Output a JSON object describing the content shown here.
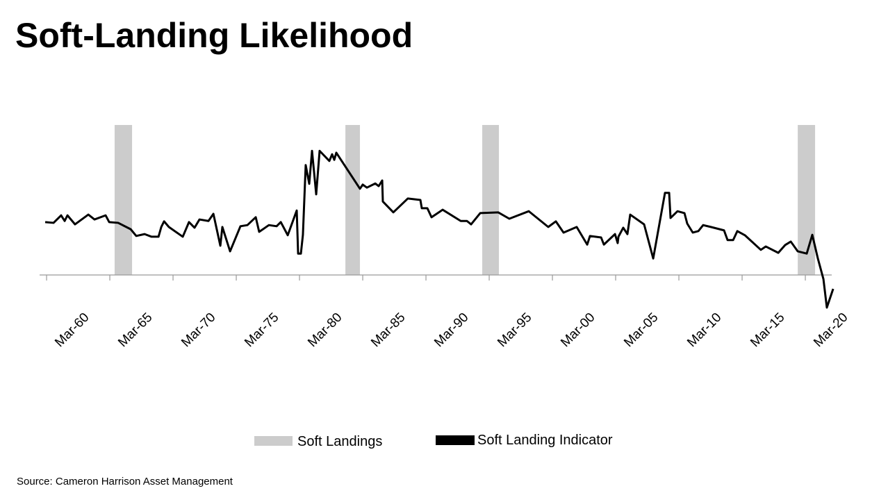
{
  "chart_data": {
    "type": "line",
    "title": "Soft-Landing Likelihood",
    "source": "Source:  Cameron Harrison Asset Management",
    "xlim": [
      1959.8,
      2022.3
    ],
    "ylim": [
      -1,
      4
    ],
    "xticks": [
      {
        "value": 1960,
        "label": "Mar-60"
      },
      {
        "value": 1965,
        "label": "Mar-65"
      },
      {
        "value": 1970,
        "label": "Mar-70"
      },
      {
        "value": 1975,
        "label": "Mar-75"
      },
      {
        "value": 1980,
        "label": "Mar-80"
      },
      {
        "value": 1985,
        "label": "Mar-85"
      },
      {
        "value": 1990,
        "label": "Mar-90"
      },
      {
        "value": 1995,
        "label": "Mar-95"
      },
      {
        "value": 2000,
        "label": "Mar-00"
      },
      {
        "value": 2005,
        "label": "Mar-05"
      },
      {
        "value": 2010,
        "label": "Mar-10"
      },
      {
        "value": 2015,
        "label": "Mar-15"
      },
      {
        "value": 2020,
        "label": "Mar-20"
      }
    ],
    "shaded": {
      "name": "Soft Landings",
      "color": "#cccccc",
      "ranges": [
        [
          1965.38,
          1966.76
        ],
        [
          1983.63,
          1984.78
        ],
        [
          1994.45,
          1995.77
        ],
        [
          2019.4,
          2020.77
        ]
      ]
    },
    "series": [
      {
        "name": "Soft Landing Indicator",
        "color": "#000000",
        "x": [
          1959.89,
          1960.55,
          1961.15,
          1961.43,
          1961.65,
          1962.25,
          1963.3,
          1963.79,
          1964.67,
          1964.95,
          1965.66,
          1966.65,
          1967.09,
          1967.75,
          1968.3,
          1968.85,
          1969.07,
          1969.29,
          1969.67,
          1970.77,
          1971.26,
          1971.7,
          1972.09,
          1972.8,
          1973.19,
          1973.74,
          1973.9,
          1974.51,
          1975.33,
          1975.88,
          1976.54,
          1976.81,
          1977.58,
          1978.19,
          1978.52,
          1979.07,
          1979.78,
          1979.89,
          1980.11,
          1980.27,
          1980.49,
          1980.77,
          1980.99,
          1981.32,
          1981.59,
          1982.36,
          1982.58,
          1982.75,
          1982.91,
          1984.78,
          1985.0,
          1985.33,
          1985.99,
          1986.26,
          1986.54,
          1986.59,
          1987.42,
          1988.57,
          1989.56,
          1989.67,
          1990.11,
          1990.44,
          1991.32,
          1992.75,
          1993.24,
          1993.57,
          1994.29,
          1995.71,
          1996.59,
          1998.13,
          1999.67,
          2000.27,
          2000.88,
          2001.92,
          2002.75,
          2002.97,
          2003.85,
          2004.07,
          2004.95,
          2005.16,
          2005.22,
          2005.6,
          2005.93,
          2006.15,
          2007.25,
          2007.97,
          2008.9,
          2009.23,
          2009.34,
          2009.89,
          2010.44,
          2010.66,
          2011.1,
          2011.54,
          2011.92,
          2012.53,
          2013.57,
          2013.85,
          2014.29,
          2014.62,
          2015.22,
          2016.48,
          2016.87,
          2017.86,
          2018.41,
          2018.85,
          2019.4,
          2020.11,
          2020.55,
          2020.99,
          2021.43,
          2021.7,
          2022.2
        ],
        "values": [
          1.41,
          1.39,
          1.59,
          1.44,
          1.59,
          1.35,
          1.61,
          1.48,
          1.59,
          1.41,
          1.39,
          1.22,
          1.04,
          1.09,
          1.02,
          1.02,
          1.28,
          1.43,
          1.28,
          1.02,
          1.41,
          1.26,
          1.48,
          1.44,
          1.63,
          0.78,
          1.28,
          0.63,
          1.3,
          1.33,
          1.54,
          1.15,
          1.33,
          1.3,
          1.41,
          1.06,
          1.72,
          0.57,
          0.57,
          1.07,
          2.93,
          2.43,
          3.31,
          2.15,
          3.31,
          3.04,
          3.22,
          3.07,
          3.26,
          2.3,
          2.41,
          2.33,
          2.44,
          2.37,
          2.52,
          1.96,
          1.67,
          2.04,
          2.0,
          1.78,
          1.78,
          1.54,
          1.74,
          1.44,
          1.44,
          1.35,
          1.65,
          1.67,
          1.5,
          1.7,
          1.28,
          1.43,
          1.13,
          1.28,
          0.81,
          1.04,
          1.0,
          0.81,
          1.09,
          0.85,
          1.02,
          1.26,
          1.09,
          1.61,
          1.35,
          0.44,
          2.19,
          2.19,
          1.52,
          1.7,
          1.65,
          1.37,
          1.13,
          1.17,
          1.33,
          1.28,
          1.19,
          0.93,
          0.93,
          1.17,
          1.06,
          0.67,
          0.76,
          0.59,
          0.8,
          0.89,
          0.63,
          0.57,
          1.07,
          0.44,
          -0.11,
          -0.87,
          -0.37
        ]
      }
    ]
  }
}
